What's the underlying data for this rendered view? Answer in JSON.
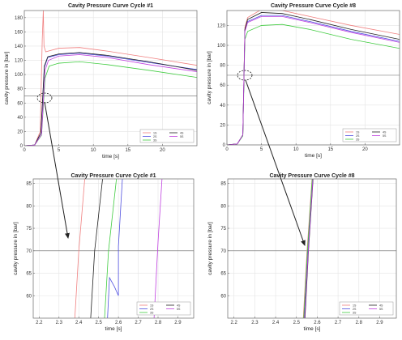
{
  "chart_data": [
    {
      "type": "line",
      "title": "Cavity Pressure Curve Cycle #1",
      "xlabel": "time [s]",
      "ylabel": "cavity pressure in [bar]",
      "xlim": [
        0,
        25
      ],
      "ylim": [
        0,
        190
      ],
      "xticks": [
        0,
        5,
        10,
        15,
        20
      ],
      "yticks": [
        0,
        20,
        40,
        60,
        80,
        100,
        120,
        140,
        160,
        180
      ],
      "grid": true,
      "legend_position": "bottom-right",
      "hline": 70,
      "series": [
        {
          "name": "1S",
          "color": "#f08080",
          "points": [
            [
              0,
              0
            ],
            [
              1.5,
              1
            ],
            [
              2.3,
              20
            ],
            [
              2.6,
              150
            ],
            [
              2.75,
              190
            ],
            [
              2.85,
              140
            ],
            [
              3.1,
              132
            ],
            [
              5,
              137
            ],
            [
              8,
              138
            ],
            [
              12,
              133
            ],
            [
              18,
              124
            ],
            [
              25,
              113
            ]
          ]
        },
        {
          "name": "2S",
          "color": "#5050e0",
          "points": [
            [
              0,
              0
            ],
            [
              1.5,
              1
            ],
            [
              2.4,
              18
            ],
            [
              2.9,
              110
            ],
            [
              3.4,
              124
            ],
            [
              5,
              128
            ],
            [
              8,
              130
            ],
            [
              12,
              126
            ],
            [
              18,
              117
            ],
            [
              25,
              107
            ]
          ]
        },
        {
          "name": "3S",
          "color": "#40cc40",
          "points": [
            [
              0,
              0
            ],
            [
              1.5,
              1
            ],
            [
              2.5,
              15
            ],
            [
              3.0,
              95
            ],
            [
              3.6,
              112
            ],
            [
              5,
              116
            ],
            [
              8,
              118
            ],
            [
              12,
              114
            ],
            [
              18,
              106
            ],
            [
              25,
              96
            ]
          ]
        },
        {
          "name": "4S",
          "color": "#202020",
          "points": [
            [
              0,
              0
            ],
            [
              1.5,
              1
            ],
            [
              2.4,
              18
            ],
            [
              2.9,
              112
            ],
            [
              3.4,
              125
            ],
            [
              5,
              129
            ],
            [
              8,
              131
            ],
            [
              12,
              127
            ],
            [
              18,
              118
            ],
            [
              25,
              106
            ]
          ]
        },
        {
          "name": "5S",
          "color": "#c040e0",
          "points": [
            [
              0,
              0
            ],
            [
              1.5,
              1
            ],
            [
              2.5,
              16
            ],
            [
              3.0,
              106
            ],
            [
              3.5,
              120
            ],
            [
              5,
              126
            ],
            [
              8,
              128
            ],
            [
              12,
              124
            ],
            [
              18,
              114
            ],
            [
              25,
              104
            ]
          ]
        }
      ]
    },
    {
      "type": "line",
      "title": "Cavity Pressure Curve Cycle #8",
      "xlabel": "time [s]",
      "ylabel": "cavity pressure in [bar]",
      "xlim": [
        0,
        25
      ],
      "ylim": [
        0,
        135
      ],
      "xticks": [
        0,
        5,
        10,
        15,
        20
      ],
      "yticks": [
        0,
        20,
        40,
        60,
        80,
        100,
        120
      ],
      "grid": true,
      "legend_position": "bottom-right",
      "hline": 70,
      "series": [
        {
          "name": "1S",
          "color": "#f08080",
          "points": [
            [
              0,
              0
            ],
            [
              1.5,
              1
            ],
            [
              2.3,
              10
            ],
            [
              2.6,
              118
            ],
            [
              3.0,
              128
            ],
            [
              5,
              136
            ],
            [
              8,
              135
            ],
            [
              12,
              129
            ],
            [
              18,
              120
            ],
            [
              25,
              111
            ]
          ]
        },
        {
          "name": "2S",
          "color": "#5050e0",
          "points": [
            [
              0,
              0
            ],
            [
              1.5,
              1
            ],
            [
              2.3,
              10
            ],
            [
              2.6,
              115
            ],
            [
              3.0,
              124
            ],
            [
              5,
              130
            ],
            [
              8,
              130
            ],
            [
              12,
              124
            ],
            [
              18,
              114
            ],
            [
              25,
              104
            ]
          ]
        },
        {
          "name": "3S",
          "color": "#40cc40",
          "points": [
            [
              0,
              0
            ],
            [
              1.5,
              1
            ],
            [
              2.3,
              9
            ],
            [
              2.6,
              106
            ],
            [
              3.0,
              114
            ],
            [
              5,
              120
            ],
            [
              8,
              121
            ],
            [
              12,
              116
            ],
            [
              18,
              106
            ],
            [
              25,
              97
            ]
          ]
        },
        {
          "name": "4S",
          "color": "#202020",
          "points": [
            [
              0,
              0
            ],
            [
              1.5,
              1
            ],
            [
              2.3,
              10
            ],
            [
              2.6,
              116
            ],
            [
              3.0,
              126
            ],
            [
              5,
              133
            ],
            [
              8,
              132
            ],
            [
              12,
              126
            ],
            [
              18,
              116
            ],
            [
              25,
              106
            ]
          ]
        },
        {
          "name": "5S",
          "color": "#c040e0",
          "points": [
            [
              0,
              0
            ],
            [
              1.5,
              1
            ],
            [
              2.3,
              10
            ],
            [
              2.6,
              114
            ],
            [
              3.0,
              123
            ],
            [
              5,
              129
            ],
            [
              8,
              129
            ],
            [
              12,
              123
            ],
            [
              18,
              113
            ],
            [
              25,
              103
            ]
          ]
        }
      ]
    },
    {
      "type": "line",
      "title": "Cavity Pressure Curve Cycle #1",
      "xlabel": "time [s]",
      "ylabel": "cavity pressure in [bar]",
      "xlim": [
        2.17,
        2.98
      ],
      "ylim": [
        55,
        86
      ],
      "xticks": [
        2.2,
        2.3,
        2.4,
        2.5,
        2.6,
        2.7,
        2.8,
        2.9
      ],
      "yticks": [
        60,
        65,
        70,
        75,
        80,
        85
      ],
      "grid": true,
      "legend_position": "bottom-right",
      "hline": 70,
      "series": [
        {
          "name": "1S",
          "color": "#f08080",
          "points": [
            [
              2.38,
              55
            ],
            [
              2.4,
              70
            ],
            [
              2.43,
              86
            ]
          ]
        },
        {
          "name": "2S",
          "color": "#5050e0",
          "points": [
            [
              2.545,
              55
            ],
            [
              2.555,
              64
            ],
            [
              2.58,
              62
            ],
            [
              2.6,
              60
            ],
            [
              2.6,
              71
            ],
            [
              2.62,
              86
            ]
          ]
        },
        {
          "name": "3S",
          "color": "#40cc40",
          "points": [
            [
              2.53,
              55
            ],
            [
              2.55,
              70
            ],
            [
              2.59,
              86
            ]
          ]
        },
        {
          "name": "4S",
          "color": "#202020",
          "points": [
            [
              2.46,
              55
            ],
            [
              2.48,
              70
            ],
            [
              2.52,
              86
            ]
          ]
        },
        {
          "name": "5S",
          "color": "#c040e0",
          "points": [
            [
              2.78,
              55
            ],
            [
              2.8,
              72
            ],
            [
              2.82,
              86
            ]
          ]
        }
      ]
    },
    {
      "type": "line",
      "title": "Cavity Pressure Curve Cycle #8",
      "xlabel": "time [s]",
      "ylabel": "cavity pressure in [bar]",
      "xlim": [
        2.17,
        2.98
      ],
      "ylim": [
        55,
        86
      ],
      "xticks": [
        2.2,
        2.3,
        2.4,
        2.5,
        2.6,
        2.7,
        2.8,
        2.9
      ],
      "yticks": [
        60,
        65,
        70,
        75,
        80,
        85
      ],
      "grid": true,
      "legend_position": "bottom-right",
      "hline": 70,
      "series": [
        {
          "name": "1S",
          "color": "#f08080",
          "points": [
            [
              2.533,
              55
            ],
            [
              2.551,
              70
            ],
            [
              2.575,
              86
            ]
          ]
        },
        {
          "name": "2S",
          "color": "#5050e0",
          "points": [
            [
              2.537,
              55
            ],
            [
              2.555,
              70
            ],
            [
              2.578,
              86
            ]
          ]
        },
        {
          "name": "3S",
          "color": "#40cc40",
          "points": [
            [
              2.535,
              55
            ],
            [
              2.553,
              70
            ],
            [
              2.576,
              86
            ]
          ]
        },
        {
          "name": "4S",
          "color": "#202020",
          "points": [
            [
              2.541,
              55
            ],
            [
              2.558,
              70
            ],
            [
              2.58,
              86
            ]
          ]
        },
        {
          "name": "5S",
          "color": "#c040e0",
          "points": [
            [
              2.539,
              55
            ],
            [
              2.557,
              70
            ],
            [
              2.579,
              86
            ]
          ]
        }
      ]
    }
  ]
}
